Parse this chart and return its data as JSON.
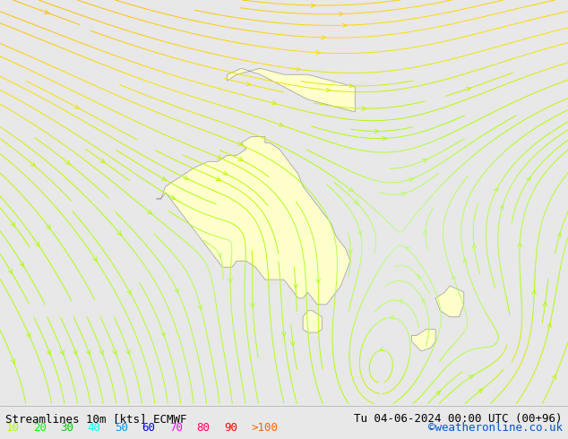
{
  "title_left": "Streamlines 10m [kts] ECMWF",
  "title_right": "Tu 04-06-2024 00:00 UTC (00+96)",
  "credit": "©weatheronline.co.uk",
  "legend_values": [
    "10",
    "20",
    "30",
    "40",
    "50",
    "60",
    "70",
    "80",
    "90",
    ">100"
  ],
  "legend_colors": [
    "#aaff00",
    "#00ff00",
    "#00cc00",
    "#00ffff",
    "#0099ff",
    "#0000ff",
    "#ff00ff",
    "#ff0066",
    "#ff0000",
    "#ff6600"
  ],
  "bg_color": "#e8e8e8",
  "land_color": "#ffffcc",
  "ocean_color": "#e0e0e0",
  "streamline_colors": [
    "#aaff00",
    "#88cc00",
    "#ffcc00",
    "#ffaa00",
    "#00cc44",
    "#00aaff"
  ],
  "fig_width": 6.34,
  "fig_height": 4.9,
  "dpi": 100,
  "map_extent": [
    80,
    200,
    -55,
    10
  ],
  "text_color": "#000000",
  "title_fontsize": 9,
  "legend_fontsize": 9,
  "credit_color": "#0055cc"
}
